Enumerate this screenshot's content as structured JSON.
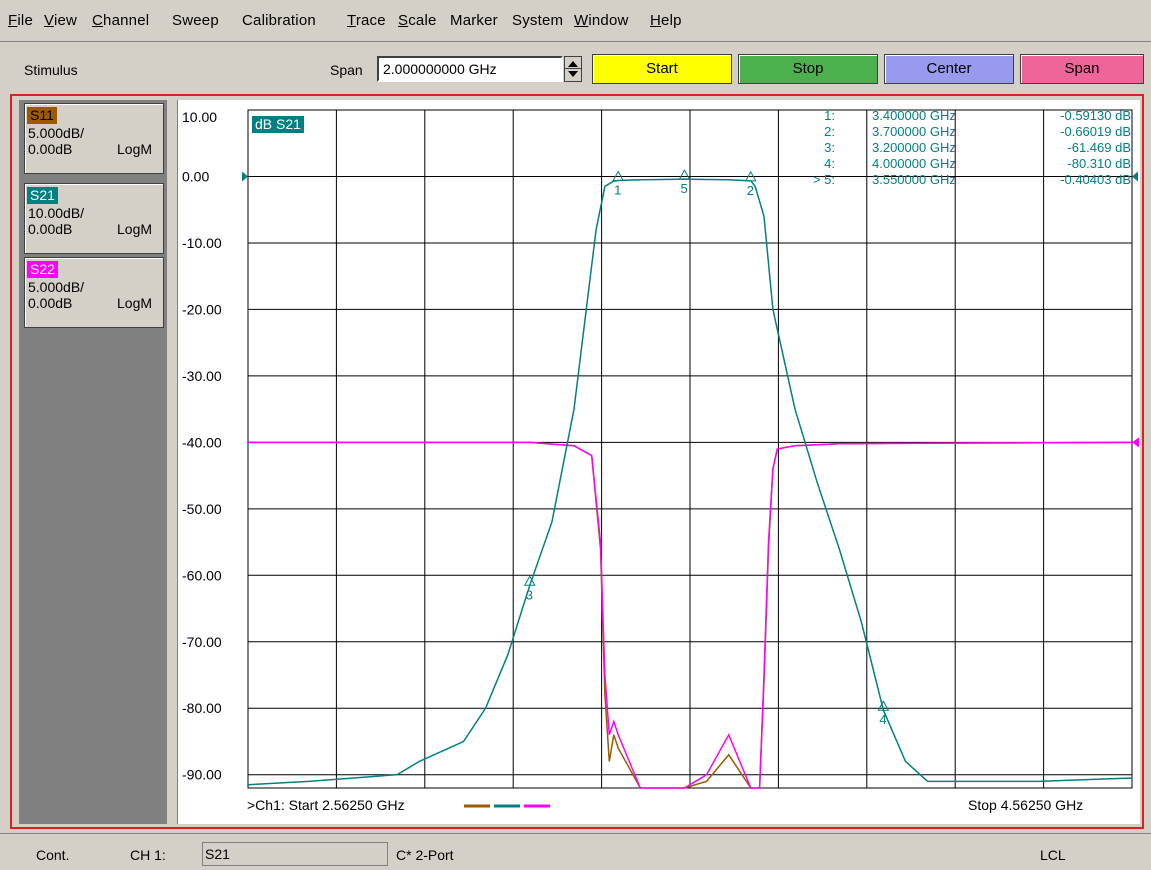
{
  "menu": [
    {
      "label": "File",
      "ul": "F",
      "rest": "ile"
    },
    {
      "label": "View",
      "ul": "V",
      "rest": "iew"
    },
    {
      "label": "Channel",
      "ul": "C",
      "rest": "hannel"
    },
    {
      "label": "Sweep",
      "ul": "",
      "rest": "Sweep"
    },
    {
      "label": "Calibration",
      "ul": "",
      "rest": "Calibration"
    },
    {
      "label": "Trace",
      "ul": "T",
      "rest": "race"
    },
    {
      "label": "Scale",
      "ul": "S",
      "rest": "cale"
    },
    {
      "label": "Marker",
      "ul": "",
      "rest": "Marker"
    },
    {
      "label": "System",
      "ul": "",
      "rest": "System"
    },
    {
      "label": "Window",
      "ul": "W",
      "rest": "indow"
    },
    {
      "label": "Help",
      "ul": "H",
      "rest": "elp"
    }
  ],
  "stimulus": {
    "label": "Stimulus",
    "span_label": "Span",
    "span_value": "2.000000000 GHz",
    "buttons": [
      {
        "label": "Start",
        "color": "#ffff00"
      },
      {
        "label": "Stop",
        "color": "#4cb04c"
      },
      {
        "label": "Center",
        "color": "#9999ee"
      },
      {
        "label": "Span",
        "color": "#ee6699"
      }
    ]
  },
  "traces": [
    {
      "name": "S11",
      "scale": "5.000dB/",
      "ref": "0.00dB",
      "format": "LogM",
      "color": "#9c5a00",
      "text_color": "#000000"
    },
    {
      "name": "S21",
      "scale": "10.00dB/",
      "ref": "0.00dB",
      "format": "LogM",
      "color": "#008080",
      "text_color": "#ffffff"
    },
    {
      "name": "S22",
      "scale": "5.000dB/",
      "ref": "0.00dB",
      "format": "LogM",
      "color": "#ff00ff",
      "text_color": "#ffffff"
    }
  ],
  "plot": {
    "active_trace_label": "dB S21",
    "y_labels": [
      "10.00",
      "0.00",
      "-10.00",
      "-20.00",
      "-30.00",
      "-40.00",
      "-50.00",
      "-60.00",
      "-70.00",
      "-80.00",
      "-90.00"
    ],
    "start_text": ">Ch1: Start  2.56250 GHz",
    "stop_text": "Stop  4.56250 GHz",
    "markers": [
      {
        "num": "1:",
        "freq": "3.400000 GHz",
        "value": "-0.59130 dB"
      },
      {
        "num": "2:",
        "freq": "3.700000 GHz",
        "value": "-0.66019 dB"
      },
      {
        "num": "3:",
        "freq": "3.200000 GHz",
        "value": "-61.469 dB"
      },
      {
        "num": "4:",
        "freq": "4.000000 GHz",
        "value": "-80.310 dB"
      },
      {
        "num": "> 5:",
        "freq": "3.550000 GHz",
        "value": "-0.40403 dB"
      }
    ],
    "marker_tags": [
      "1",
      "2",
      "3",
      "4",
      "5"
    ]
  },
  "chart_data": {
    "type": "line",
    "xlim": [
      2.5625,
      4.5625
    ],
    "ylim": [
      -92,
      10
    ],
    "series": [
      {
        "name": "S21",
        "color": "#008080",
        "x": [
          2.5625,
          2.7,
          2.9,
          2.95,
          3.05,
          3.1,
          3.15,
          3.2,
          3.25,
          3.3,
          3.35,
          3.37,
          3.39,
          3.4,
          3.45,
          3.5,
          3.55,
          3.6,
          3.65,
          3.7,
          3.71,
          3.73,
          3.75,
          3.8,
          3.85,
          3.9,
          3.95,
          4.0,
          4.05,
          4.1,
          4.2,
          4.35,
          4.5625
        ],
        "y": [
          -91.5,
          -91,
          -90,
          -88,
          -85,
          -80,
          -72,
          -61.5,
          -52,
          -35,
          -8,
          -1.5,
          -0.7,
          -0.6,
          -0.5,
          -0.45,
          -0.4,
          -0.45,
          -0.5,
          -0.66,
          -1.5,
          -6,
          -20,
          -35,
          -46,
          -56,
          -67,
          -80.3,
          -88,
          -91,
          -91,
          -91,
          -90.5
        ]
      },
      {
        "name": "S22",
        "color": "#ff00ff",
        "x": [
          2.5625,
          3.0,
          3.1,
          3.2,
          3.3,
          3.34,
          3.36,
          3.37,
          3.38,
          3.39,
          3.4,
          3.45,
          3.5,
          3.55,
          3.6,
          3.65,
          3.7,
          3.72,
          3.73,
          3.74,
          3.75,
          3.76,
          3.8,
          3.9,
          4.2,
          4.5625
        ],
        "y": [
          -40,
          -40,
          -40,
          -40,
          -40.5,
          -42,
          -55,
          -75,
          -84,
          -82,
          -84,
          -92,
          -92,
          -92,
          -90,
          -84,
          -92,
          -92,
          -75,
          -55,
          -44,
          -41,
          -40.5,
          -40.2,
          -40.1,
          -40
        ]
      },
      {
        "name": "S11",
        "color": "#9c5a00",
        "x": [
          2.5625,
          3.0,
          3.1,
          3.2,
          3.3,
          3.34,
          3.36,
          3.37,
          3.38,
          3.39,
          3.4,
          3.45,
          3.5,
          3.55,
          3.6,
          3.65,
          3.7,
          3.72,
          3.73,
          3.74,
          3.75,
          3.76,
          3.8,
          3.9,
          4.2,
          4.5625
        ],
        "y": [
          -40,
          -40,
          -40,
          -40,
          -40.5,
          -42,
          -56,
          -78,
          -88,
          -84,
          -86,
          -92,
          -92,
          -92,
          -91,
          -87,
          -92,
          -92,
          -76,
          -56,
          -44,
          -41,
          -40.5,
          -40.2,
          -40.1,
          -40
        ]
      }
    ],
    "grid": true,
    "xlabel": "",
    "ylabel": ""
  },
  "status": {
    "mode": "Cont.",
    "channel": "CH 1:",
    "trace": "S21",
    "cal": "C* 2-Port",
    "remote": "LCL"
  }
}
